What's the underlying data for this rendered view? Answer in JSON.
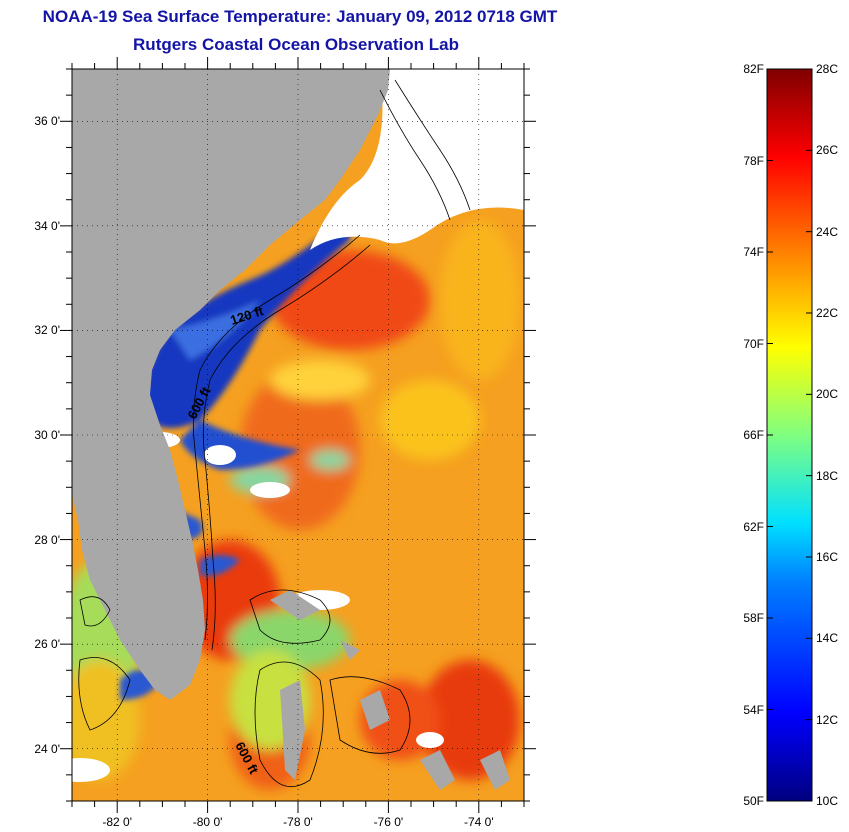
{
  "title_line1": "NOAA-19 Sea Surface Temperature:  January 09, 2012 0718 GMT",
  "title_line2": "Rutgers Coastal Ocean Observation Lab",
  "map": {
    "lon_range": [
      -83.0,
      -73.0
    ],
    "lat_range": [
      23.0,
      37.0
    ],
    "lon_ticks": [
      {
        "value": -82,
        "label": "-82 0'"
      },
      {
        "value": -80,
        "label": "-80 0'"
      },
      {
        "value": -78,
        "label": "-78 0'"
      },
      {
        "value": -76,
        "label": "-76 0'"
      },
      {
        "value": -74,
        "label": "-74 0'"
      }
    ],
    "lat_ticks": [
      {
        "value": 36,
        "label": "36 0'"
      },
      {
        "value": 34,
        "label": "34 0'"
      },
      {
        "value": 32,
        "label": "32 0'"
      },
      {
        "value": 30,
        "label": "30 0'"
      },
      {
        "value": 28,
        "label": "28 0'"
      },
      {
        "value": 26,
        "label": "26 0'"
      },
      {
        "value": 24,
        "label": "24 0'"
      }
    ],
    "contour_labels": [
      "120 ft",
      "600 ft",
      "600 ft"
    ],
    "colors": {
      "land": "#a8a8a8",
      "cloud": "#ffffff",
      "shelf_cold": "#1a3fc8",
      "gulf_stream": "#f04010",
      "offshore_warm": "#f7a020",
      "bays": "#9bd66a"
    }
  },
  "colorbar": {
    "temp_c_range": [
      10,
      28
    ],
    "temp_f_range": [
      50,
      82
    ],
    "f_labels": [
      "82F",
      "78F",
      "74F",
      "70F",
      "66F",
      "62F",
      "58F",
      "54F",
      "50F"
    ],
    "c_labels": [
      "28C",
      "26C",
      "24C",
      "22C",
      "20C",
      "18C",
      "16C",
      "14C",
      "12C",
      "10C"
    ]
  }
}
